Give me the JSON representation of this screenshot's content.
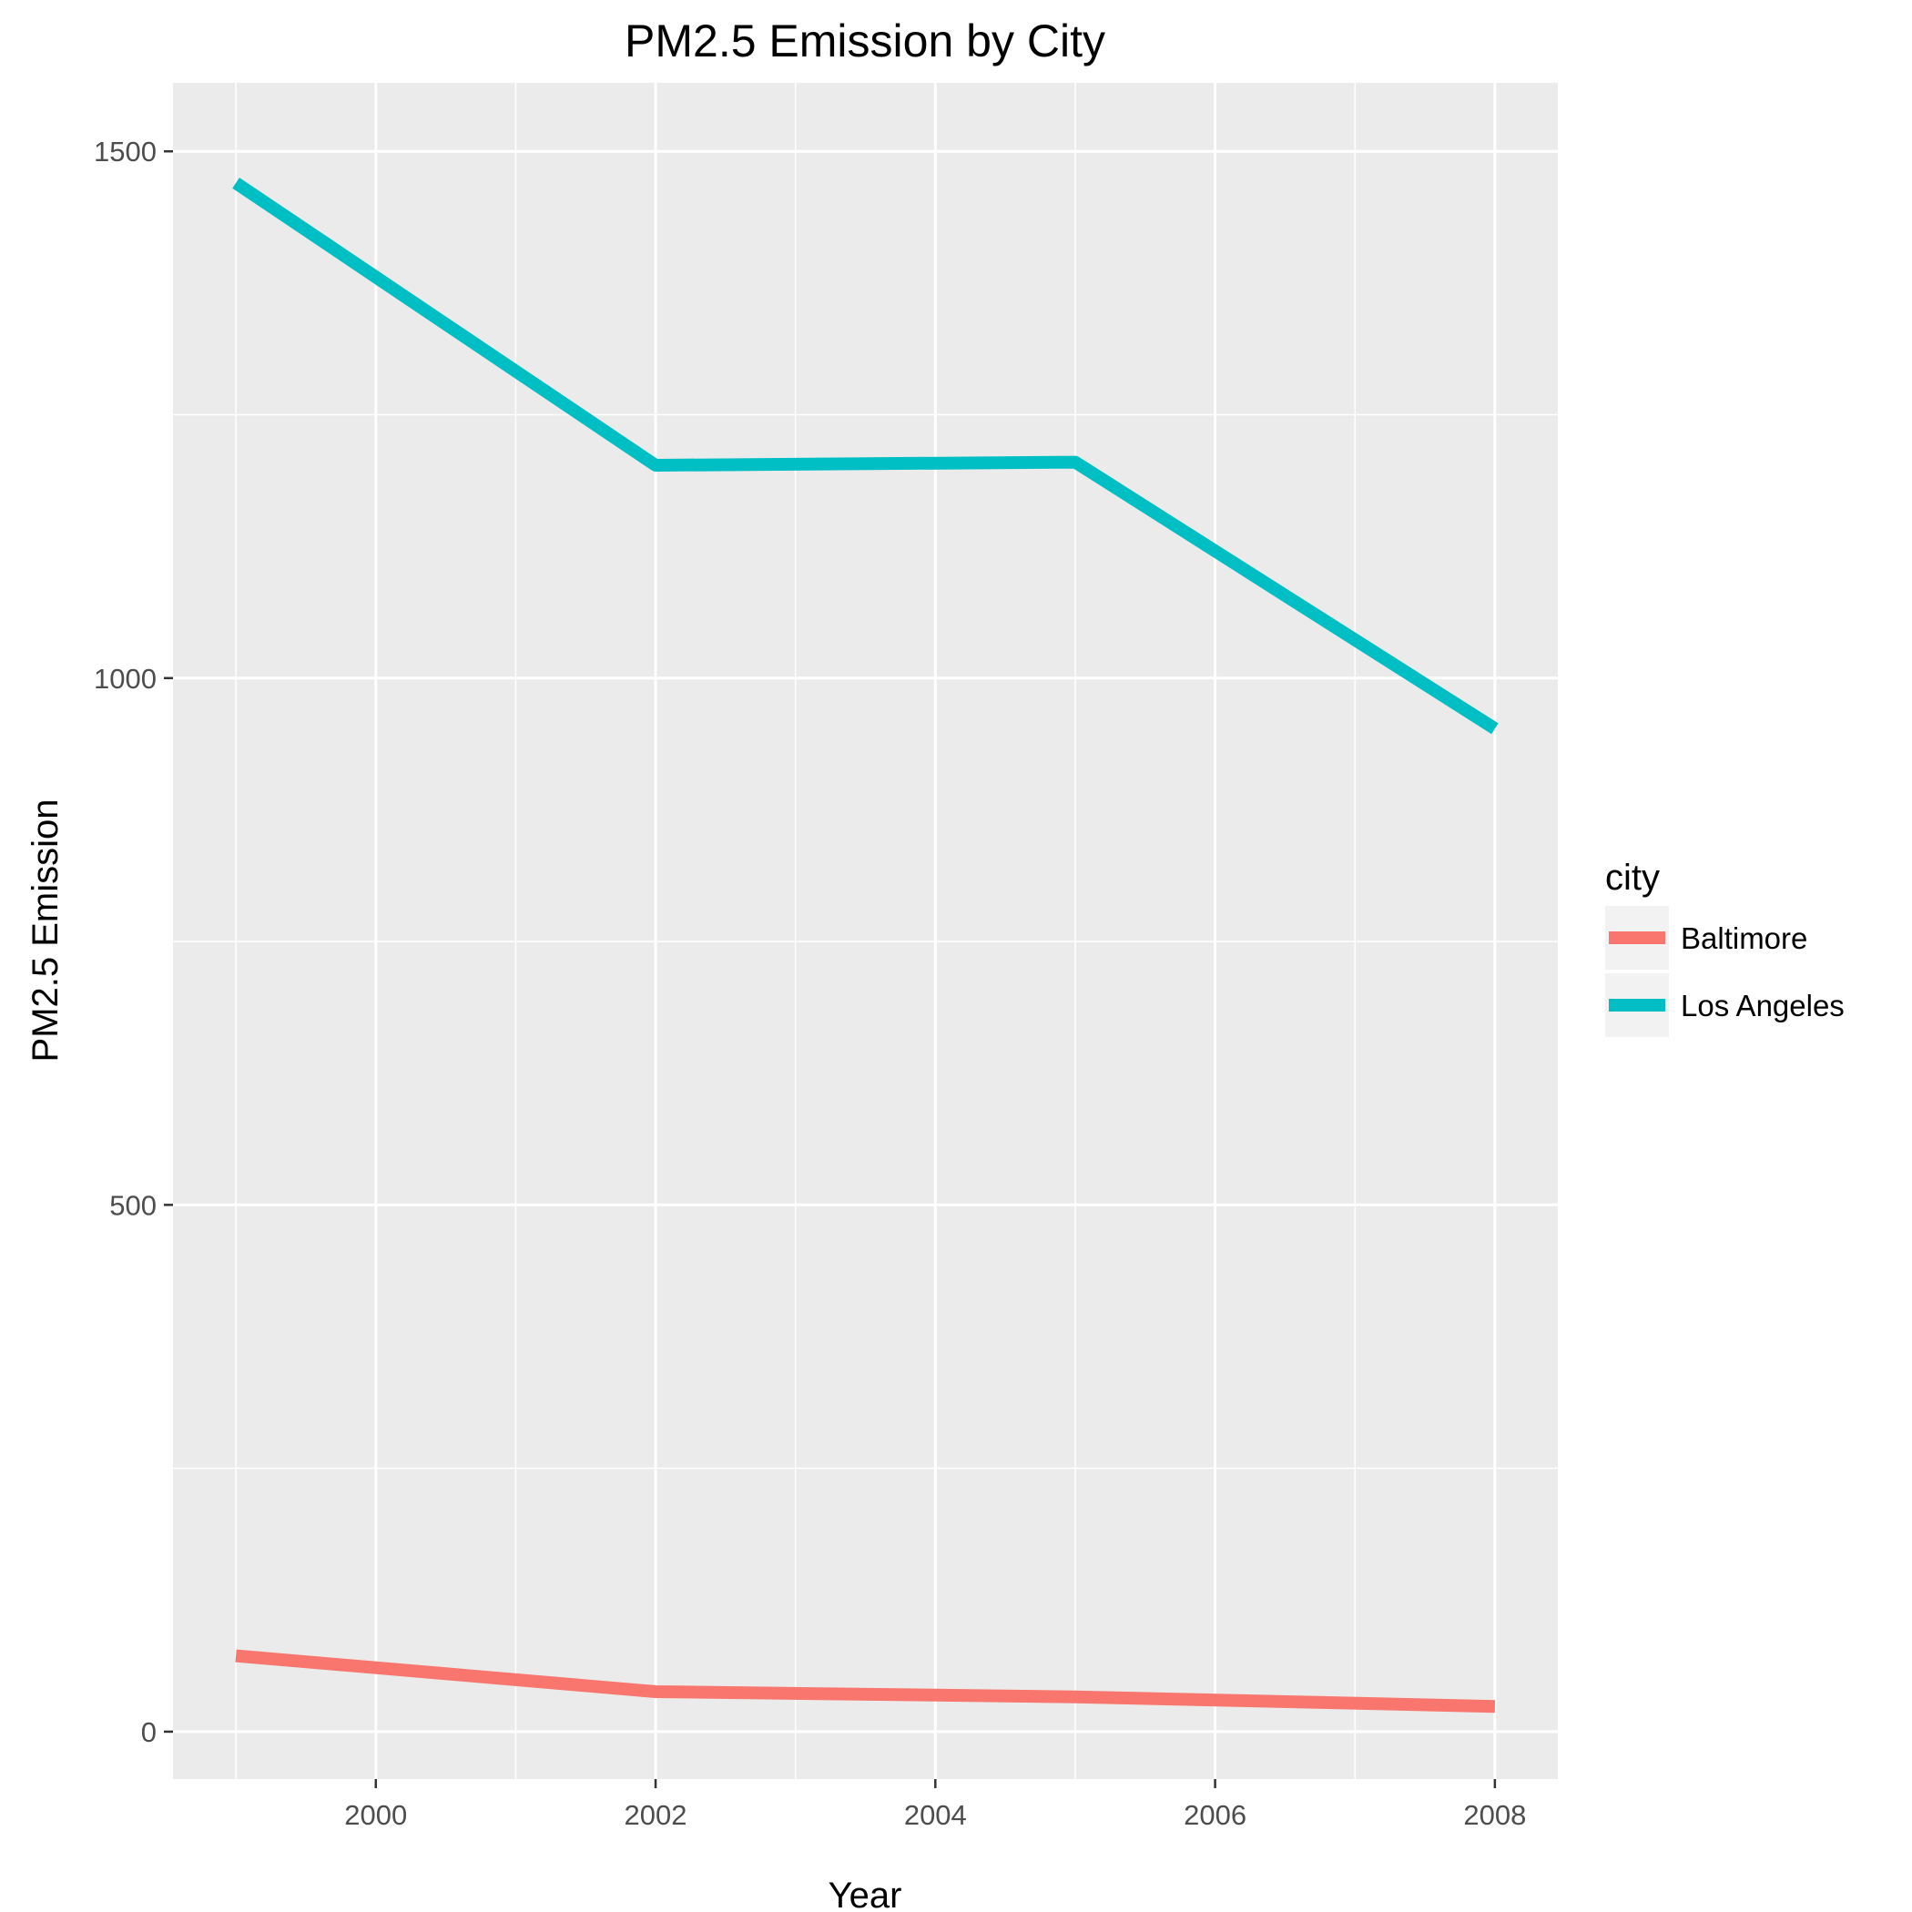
{
  "chart_data": {
    "type": "line",
    "title": "PM2.5 Emission by City",
    "xlabel": "Year",
    "ylabel": "PM2.5 Emission",
    "x": [
      1999,
      2002,
      2005,
      2008
    ],
    "xlim": [
      1998.55,
      2008.45
    ],
    "ylim": [
      -45,
      1565
    ],
    "x_ticks": [
      "2000",
      "2002",
      "2004",
      "2006",
      "2008"
    ],
    "y_ticks": [
      "0",
      "500",
      "1000",
      "1500"
    ],
    "grid": true,
    "legend_title": "city",
    "legend_position": "right",
    "series": [
      {
        "name": "Baltimore",
        "color": "#F8766D",
        "values": [
          72,
          38,
          33,
          24
        ]
      },
      {
        "name": "Los Angeles",
        "color": "#00BFC4",
        "values": [
          1470,
          1202,
          1205,
          952
        ]
      }
    ]
  }
}
